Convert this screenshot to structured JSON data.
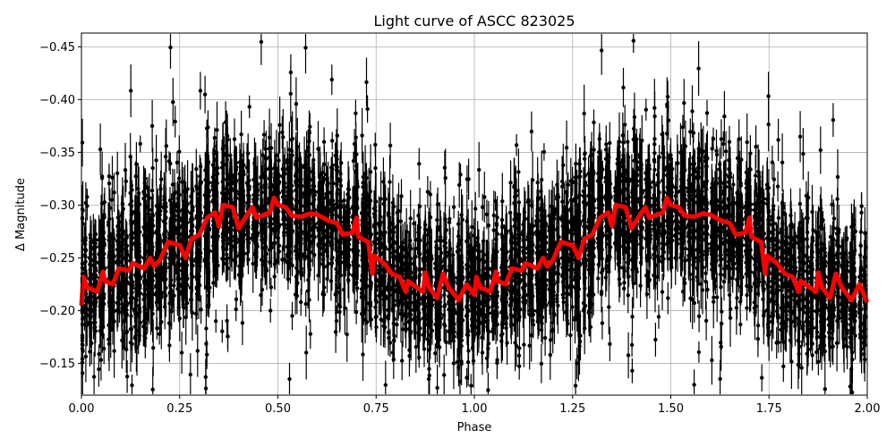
{
  "chart_data": {
    "type": "scatter",
    "title": "Light curve of ASCC 823025",
    "xlabel": "Phase",
    "ylabel": "Δ Magnitude",
    "xlim": [
      0,
      2
    ],
    "ylim": [
      -0.463,
      -0.12
    ],
    "y_inverted": true,
    "grid": true,
    "xticks": [
      "0.00",
      "0.25",
      "0.50",
      "0.75",
      "1.00",
      "1.25",
      "1.50",
      "1.75",
      "2.00"
    ],
    "yticks": [
      "−0.45",
      "−0.40",
      "−0.35",
      "−0.30",
      "−0.25",
      "−0.20",
      "−0.15"
    ],
    "series": [
      {
        "style": "black points with error bars",
        "color": "#000000"
      },
      {
        "style": "binned mean line",
        "color": "#ff0000",
        "phase": [
          0.0,
          0.005,
          0.015,
          0.04,
          0.055,
          0.06,
          0.08,
          0.095,
          0.12,
          0.13,
          0.16,
          0.175,
          0.185,
          0.2,
          0.22,
          0.25,
          0.265,
          0.28,
          0.3,
          0.32,
          0.34,
          0.35,
          0.36,
          0.385,
          0.4,
          0.42,
          0.435,
          0.445,
          0.48,
          0.49,
          0.5,
          0.52,
          0.535,
          0.56,
          0.58,
          0.6,
          0.63,
          0.65,
          0.665,
          0.69,
          0.7,
          0.705,
          0.73,
          0.74,
          0.745,
          0.77,
          0.79,
          0.81,
          0.825,
          0.83,
          0.87,
          0.875,
          0.885,
          0.905,
          0.92,
          0.935,
          0.96,
          0.98,
          1.0,
          1.005,
          1.015,
          1.04,
          1.055,
          1.06,
          1.08,
          1.095,
          1.12,
          1.13,
          1.16,
          1.175,
          1.185,
          1.2,
          1.22,
          1.25,
          1.265,
          1.28,
          1.3,
          1.32,
          1.34,
          1.35,
          1.36,
          1.385,
          1.4,
          1.42,
          1.435,
          1.445,
          1.48,
          1.49,
          1.5,
          1.52,
          1.535,
          1.56,
          1.58,
          1.6,
          1.63,
          1.65,
          1.665,
          1.69,
          1.7,
          1.705,
          1.73,
          1.74,
          1.745,
          1.77,
          1.79,
          1.81,
          1.825,
          1.83,
          1.87,
          1.875,
          1.885,
          1.905,
          1.92,
          1.935,
          1.96,
          1.98,
          2.0
        ],
        "mag": [
          -0.205,
          -0.232,
          -0.222,
          -0.218,
          -0.237,
          -0.228,
          -0.225,
          -0.24,
          -0.238,
          -0.245,
          -0.24,
          -0.25,
          -0.242,
          -0.248,
          -0.265,
          -0.262,
          -0.25,
          -0.268,
          -0.272,
          -0.288,
          -0.293,
          -0.28,
          -0.3,
          -0.298,
          -0.278,
          -0.29,
          -0.298,
          -0.288,
          -0.293,
          -0.307,
          -0.3,
          -0.298,
          -0.29,
          -0.289,
          -0.292,
          -0.291,
          -0.285,
          -0.283,
          -0.272,
          -0.274,
          -0.288,
          -0.27,
          -0.265,
          -0.235,
          -0.252,
          -0.245,
          -0.235,
          -0.232,
          -0.218,
          -0.228,
          -0.218,
          -0.236,
          -0.222,
          -0.212,
          -0.235,
          -0.222,
          -0.21,
          -0.225,
          -0.215,
          -0.232,
          -0.222,
          -0.218,
          -0.237,
          -0.228,
          -0.225,
          -0.24,
          -0.238,
          -0.245,
          -0.24,
          -0.25,
          -0.242,
          -0.248,
          -0.265,
          -0.262,
          -0.25,
          -0.268,
          -0.272,
          -0.288,
          -0.293,
          -0.28,
          -0.3,
          -0.298,
          -0.278,
          -0.29,
          -0.298,
          -0.288,
          -0.293,
          -0.307,
          -0.3,
          -0.298,
          -0.29,
          -0.289,
          -0.292,
          -0.291,
          -0.285,
          -0.283,
          -0.272,
          -0.274,
          -0.288,
          -0.27,
          -0.265,
          -0.235,
          -0.252,
          -0.245,
          -0.235,
          -0.232,
          -0.218,
          -0.228,
          -0.218,
          -0.236,
          -0.222,
          -0.212,
          -0.235,
          -0.222,
          -0.21,
          -0.225,
          -0.208
        ]
      }
    ]
  }
}
